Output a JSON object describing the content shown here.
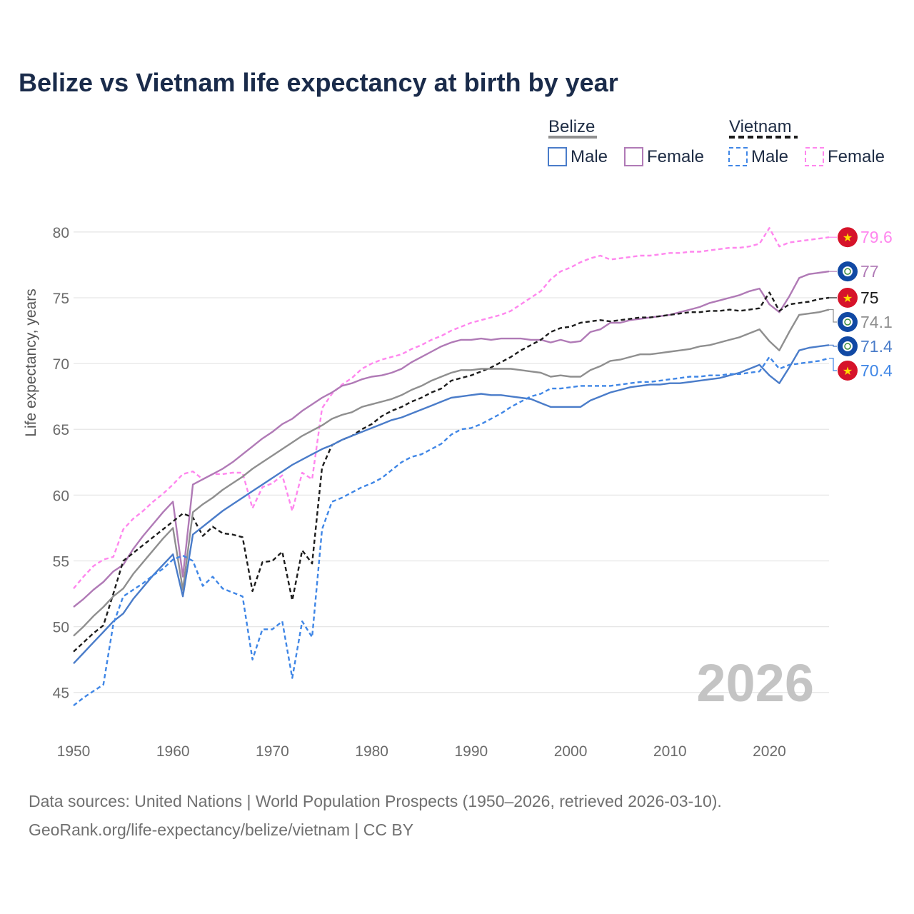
{
  "colors": {
    "belize_total": "#8f8f8f",
    "belize_male": "#4a7cc9",
    "belize_female": "#b07ab6",
    "vietnam_total": "#1c1c1c",
    "vietnam_male": "#3f86e6",
    "vietnam_female": "#ff86ee",
    "grid": "#e6e6e6",
    "flag_vietnam": "#d6132a",
    "flag_belize": "#1149a4"
  },
  "legend": {
    "belize_header": "Belize",
    "vietnam_header": "Vietnam",
    "male": "Male",
    "female": "Female"
  },
  "footer": {
    "line1": "Data sources: United Nations | World Population Prospects (1950–2026, retrieved 2026-03-10).",
    "line2": "GeoRank.org/life-expectancy/belize/vietnam | CC BY"
  },
  "chart_data": {
    "type": "line",
    "title": "Belize vs Vietnam life expectancy at birth by year",
    "xlabel": "",
    "ylabel": "Life expectancy, years",
    "xlim": [
      1950,
      2026
    ],
    "ylim": [
      42,
      82
    ],
    "xticks": [
      1950,
      1960,
      1970,
      1980,
      1990,
      2000,
      2010,
      2020
    ],
    "yticks": [
      45,
      50,
      55,
      60,
      65,
      70,
      75,
      80
    ],
    "year_label": "2026",
    "x": [
      1950,
      1951,
      1952,
      1953,
      1954,
      1955,
      1956,
      1957,
      1958,
      1959,
      1960,
      1961,
      1962,
      1963,
      1964,
      1965,
      1966,
      1967,
      1968,
      1969,
      1970,
      1971,
      1972,
      1973,
      1974,
      1975,
      1976,
      1977,
      1978,
      1979,
      1980,
      1981,
      1982,
      1983,
      1984,
      1985,
      1986,
      1987,
      1988,
      1989,
      1990,
      1991,
      1992,
      1993,
      1994,
      1995,
      1996,
      1997,
      1998,
      1999,
      2000,
      2001,
      2002,
      2003,
      2004,
      2005,
      2006,
      2007,
      2008,
      2009,
      2010,
      2011,
      2012,
      2013,
      2014,
      2015,
      2016,
      2017,
      2018,
      2019,
      2020,
      2021,
      2022,
      2023,
      2024,
      2025,
      2026
    ],
    "series": [
      {
        "name": "Vietnam Female",
        "country": "Vietnam",
        "style": "dashed",
        "end_label": "79.6",
        "values": [
          52.9,
          53.8,
          54.6,
          55.1,
          55.3,
          57.4,
          58.2,
          58.8,
          59.5,
          60.1,
          60.8,
          61.6,
          61.8,
          61.2,
          61.6,
          61.6,
          61.7,
          61.7,
          59.0,
          60.6,
          60.9,
          61.5,
          58.8,
          61.7,
          61.2,
          66.6,
          67.7,
          68.4,
          68.9,
          69.6,
          70.0,
          70.3,
          70.5,
          70.7,
          71.1,
          71.4,
          71.8,
          72.1,
          72.5,
          72.8,
          73.1,
          73.3,
          73.5,
          73.7,
          74.0,
          74.5,
          75.0,
          75.5,
          76.4,
          77.0,
          77.3,
          77.7,
          78.0,
          78.2,
          77.9,
          78.0,
          78.1,
          78.2,
          78.2,
          78.3,
          78.4,
          78.4,
          78.5,
          78.5,
          78.6,
          78.7,
          78.8,
          78.8,
          78.9,
          79.1,
          80.3,
          78.9,
          79.2,
          79.3,
          79.4,
          79.5,
          79.6
        ]
      },
      {
        "name": "Belize Female",
        "country": "Belize",
        "style": "solid",
        "end_label": "77",
        "values": [
          51.5,
          52.1,
          52.8,
          53.4,
          54.2,
          54.7,
          55.9,
          56.9,
          57.8,
          58.7,
          59.5,
          53.8,
          60.8,
          61.2,
          61.6,
          62.0,
          62.5,
          63.1,
          63.7,
          64.3,
          64.8,
          65.4,
          65.8,
          66.4,
          66.9,
          67.4,
          67.8,
          68.3,
          68.5,
          68.8,
          69.0,
          69.1,
          69.3,
          69.6,
          70.1,
          70.5,
          70.9,
          71.3,
          71.6,
          71.8,
          71.8,
          71.9,
          71.8,
          71.9,
          71.9,
          71.9,
          71.8,
          71.8,
          71.6,
          71.8,
          71.6,
          71.7,
          72.4,
          72.6,
          73.1,
          73.1,
          73.3,
          73.4,
          73.5,
          73.6,
          73.7,
          73.9,
          74.1,
          74.3,
          74.6,
          74.8,
          75.0,
          75.2,
          75.5,
          75.7,
          74.5,
          73.9,
          75.1,
          76.5,
          76.8,
          76.9,
          77.0
        ]
      },
      {
        "name": "Vietnam",
        "country": "Vietnam",
        "style": "dashed",
        "end_label": "75",
        "values": [
          48.1,
          48.8,
          49.5,
          50.1,
          52.5,
          55.0,
          55.6,
          56.2,
          56.8,
          57.4,
          58.0,
          58.6,
          58.3,
          56.9,
          57.6,
          57.1,
          57.0,
          56.8,
          52.7,
          54.9,
          55.0,
          55.7,
          52.0,
          55.8,
          54.8,
          62.1,
          63.8,
          64.2,
          64.5,
          65.0,
          65.4,
          66.0,
          66.4,
          66.7,
          67.1,
          67.4,
          67.8,
          68.1,
          68.7,
          68.9,
          69.1,
          69.4,
          69.7,
          70.1,
          70.5,
          71.0,
          71.4,
          71.8,
          72.4,
          72.7,
          72.8,
          73.1,
          73.2,
          73.3,
          73.2,
          73.3,
          73.4,
          73.5,
          73.5,
          73.6,
          73.7,
          73.8,
          73.9,
          73.9,
          74.0,
          74.0,
          74.1,
          74.0,
          74.1,
          74.2,
          75.4,
          74.0,
          74.5,
          74.6,
          74.7,
          74.9,
          75.0
        ]
      },
      {
        "name": "Belize",
        "country": "Belize",
        "style": "solid",
        "end_label": "74.1",
        "values": [
          49.3,
          50.0,
          50.8,
          51.5,
          52.3,
          52.9,
          54.0,
          54.9,
          55.8,
          56.7,
          57.5,
          52.8,
          58.7,
          59.3,
          59.8,
          60.4,
          60.9,
          61.4,
          62.0,
          62.5,
          63.0,
          63.5,
          64.0,
          64.5,
          64.9,
          65.3,
          65.8,
          66.1,
          66.3,
          66.7,
          66.9,
          67.1,
          67.3,
          67.6,
          68.0,
          68.3,
          68.7,
          69.0,
          69.3,
          69.5,
          69.5,
          69.6,
          69.6,
          69.6,
          69.6,
          69.5,
          69.4,
          69.3,
          69.0,
          69.1,
          69.0,
          69.0,
          69.5,
          69.8,
          70.2,
          70.3,
          70.5,
          70.7,
          70.7,
          70.8,
          70.9,
          71.0,
          71.1,
          71.3,
          71.4,
          71.6,
          71.8,
          72.0,
          72.3,
          72.6,
          71.7,
          71.0,
          72.4,
          73.7,
          73.8,
          73.9,
          74.1
        ]
      },
      {
        "name": "Belize Male",
        "country": "Belize",
        "style": "solid",
        "end_label": "71.4",
        "values": [
          47.2,
          48.0,
          48.8,
          49.6,
          50.4,
          51.0,
          52.1,
          53.0,
          53.9,
          54.7,
          55.5,
          52.3,
          57.0,
          57.6,
          58.2,
          58.8,
          59.3,
          59.8,
          60.3,
          60.8,
          61.3,
          61.8,
          62.3,
          62.7,
          63.1,
          63.5,
          63.8,
          64.2,
          64.5,
          64.8,
          65.1,
          65.4,
          65.7,
          65.9,
          66.2,
          66.5,
          66.8,
          67.1,
          67.4,
          67.5,
          67.6,
          67.7,
          67.6,
          67.6,
          67.5,
          67.4,
          67.3,
          67.0,
          66.7,
          66.7,
          66.7,
          66.7,
          67.2,
          67.5,
          67.8,
          68.0,
          68.2,
          68.3,
          68.4,
          68.4,
          68.5,
          68.5,
          68.6,
          68.7,
          68.8,
          68.9,
          69.1,
          69.3,
          69.6,
          69.9,
          69.1,
          68.5,
          69.7,
          71.0,
          71.2,
          71.3,
          71.4
        ]
      },
      {
        "name": "Vietnam Male",
        "country": "Vietnam",
        "style": "dashed",
        "end_label": "70.4",
        "values": [
          44.0,
          44.6,
          45.1,
          45.6,
          50.2,
          52.3,
          52.8,
          53.3,
          53.9,
          54.4,
          55.1,
          55.4,
          55.0,
          53.1,
          53.8,
          52.9,
          52.6,
          52.3,
          47.5,
          49.8,
          49.8,
          50.4,
          46.1,
          50.4,
          49.2,
          57.4,
          59.5,
          59.8,
          60.2,
          60.6,
          60.9,
          61.3,
          61.9,
          62.5,
          62.9,
          63.1,
          63.5,
          63.9,
          64.6,
          65.0,
          65.1,
          65.4,
          65.8,
          66.2,
          66.7,
          67.1,
          67.5,
          67.7,
          68.1,
          68.1,
          68.2,
          68.3,
          68.3,
          68.3,
          68.3,
          68.4,
          68.5,
          68.6,
          68.6,
          68.7,
          68.8,
          68.9,
          69.0,
          69.0,
          69.1,
          69.1,
          69.2,
          69.2,
          69.3,
          69.4,
          70.5,
          69.6,
          69.9,
          70.0,
          70.1,
          70.2,
          70.4
        ]
      }
    ]
  }
}
